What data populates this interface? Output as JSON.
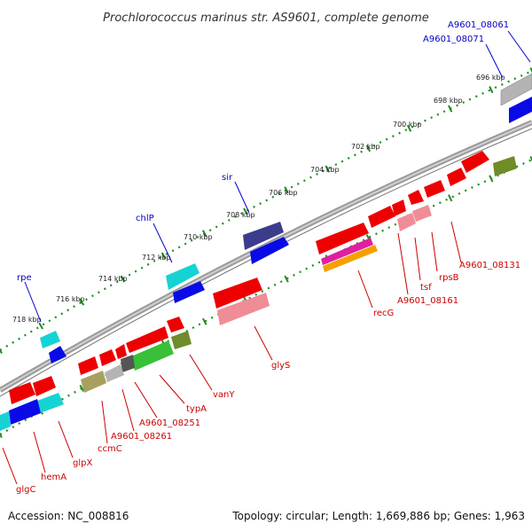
{
  "title": "Prochlorococcus marinus str. AS9601, complete genome",
  "accession": "Accession: NC_008816",
  "topology": "Topology: circular; Length: 1,669,886 bp; Genes: 1,963",
  "colors": {
    "backbone": "#8c8c8c",
    "ticks": "#1e8c1e",
    "label_top": "#0000cc",
    "label_bottom": "#cc0000",
    "red": "#ee0000",
    "blue": "#0a0ae6",
    "cyan": "#16d3d3",
    "navy": "#3c3c8c",
    "pink": "#f08c96",
    "gray": "#b4b4b4",
    "olive": "#a8a060",
    "green": "#38c038",
    "magenta": "#e01ea0",
    "orange": "#f5a000",
    "darkolive": "#6e8c28"
  },
  "kbp_labels": [
    "696 kbp",
    "698 kbp",
    "700 kbp",
    "702 kbp",
    "704 kbp",
    "706 kbp",
    "708 kbp",
    "710 kbp",
    "712 kbp",
    "714 kbp",
    "716 kbp",
    "718 kbp"
  ],
  "labels_top": [
    "A9601_08061",
    "A9601_08071",
    "sir",
    "chlP",
    "rpe"
  ],
  "labels_bottom": [
    "A9601_08131",
    "rpsB",
    "tsf",
    "A9601_08161",
    "recG",
    "glyS",
    "vanY",
    "typA",
    "A9601_08251",
    "A9601_08261",
    "ccmC",
    "glpX",
    "hemA",
    "glgC"
  ]
}
